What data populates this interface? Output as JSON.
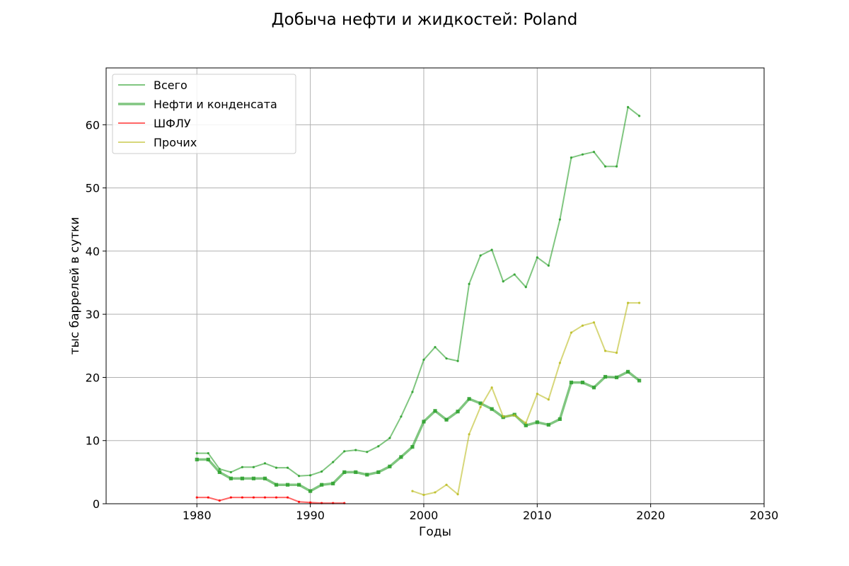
{
  "chart_data": {
    "type": "line",
    "title": "Добыча нефти и жидкостей: Poland",
    "xlabel": "Годы",
    "ylabel": "тыс баррелей в сутки",
    "xlim": [
      1972,
      2030
    ],
    "ylim": [
      0,
      69
    ],
    "xticks": [
      "1980",
      "1990",
      "2000",
      "2010",
      "2020",
      "2030"
    ],
    "yticks": [
      "0",
      "10",
      "20",
      "30",
      "40",
      "50",
      "60"
    ],
    "grid": true,
    "legend_position": "top-left",
    "series": [
      {
        "name": "Всего",
        "color": "#2ca02c",
        "x": [
          1980,
          1981,
          1982,
          1983,
          1984,
          1985,
          1986,
          1987,
          1988,
          1989,
          1990,
          1991,
          1992,
          1993,
          1994,
          1995,
          1996,
          1997,
          1998,
          1999,
          2000,
          2001,
          2002,
          2003,
          2004,
          2005,
          2006,
          2007,
          2008,
          2009,
          2010,
          2011,
          2012,
          2013,
          2014,
          2015,
          2016,
          2017,
          2018,
          2019
        ],
        "values": [
          8.0,
          8.0,
          5.5,
          5.0,
          5.8,
          5.8,
          6.4,
          5.7,
          5.7,
          4.4,
          4.5,
          5.1,
          6.6,
          8.3,
          8.5,
          8.2,
          9.1,
          10.4,
          13.8,
          17.7,
          22.8,
          24.8,
          23.0,
          22.6,
          34.8,
          39.3,
          40.2,
          35.2,
          36.3,
          34.3,
          39.0,
          37.7,
          45.0,
          54.8,
          55.3,
          55.7,
          53.4,
          53.4,
          62.8,
          61.4
        ]
      },
      {
        "name": "Нефти и конденсата",
        "color": "#2ca02c",
        "x": [
          1980,
          1981,
          1982,
          1983,
          1984,
          1985,
          1986,
          1987,
          1988,
          1989,
          1990,
          1991,
          1992,
          1993,
          1994,
          1995,
          1996,
          1997,
          1998,
          1999,
          2000,
          2001,
          2002,
          2003,
          2004,
          2005,
          2006,
          2007,
          2008,
          2009,
          2010,
          2011,
          2012,
          2013,
          2014,
          2015,
          2016,
          2017,
          2018,
          2019
        ],
        "values": [
          7.0,
          7.0,
          5.0,
          4.0,
          4.0,
          4.0,
          4.0,
          3.0,
          3.0,
          3.0,
          2.0,
          3.0,
          3.2,
          5.0,
          5.0,
          4.6,
          5.0,
          5.9,
          7.4,
          9.0,
          13.0,
          14.7,
          13.3,
          14.6,
          16.6,
          15.9,
          15.0,
          13.7,
          14.1,
          12.4,
          12.9,
          12.5,
          13.4,
          19.2,
          19.2,
          18.4,
          20.1,
          20.0,
          20.9,
          19.5
        ]
      },
      {
        "name": "ШФЛУ",
        "color": "#ff0000",
        "x": [
          1980,
          1981,
          1982,
          1983,
          1984,
          1985,
          1986,
          1987,
          1988,
          1989,
          1990,
          1991,
          1992,
          1993
        ],
        "values": [
          1.0,
          1.0,
          0.5,
          1.0,
          1.0,
          1.0,
          1.0,
          1.0,
          1.0,
          0.3,
          0.2,
          0.1,
          0.1,
          0.1
        ]
      },
      {
        "name": "Прочих",
        "color": "#bcbd22",
        "x": [
          1999,
          2000,
          2001,
          2002,
          2003,
          2004,
          2005,
          2006,
          2007,
          2008,
          2009,
          2010,
          2011,
          2012,
          2013,
          2014,
          2015,
          2016,
          2017,
          2018,
          2019
        ],
        "values": [
          2.0,
          1.4,
          1.8,
          3.0,
          1.5,
          11.0,
          15.3,
          18.4,
          13.8,
          14.0,
          12.8,
          17.4,
          16.5,
          22.3,
          27.1,
          28.2,
          28.7,
          24.2,
          23.9,
          31.8,
          31.8
        ]
      }
    ]
  }
}
